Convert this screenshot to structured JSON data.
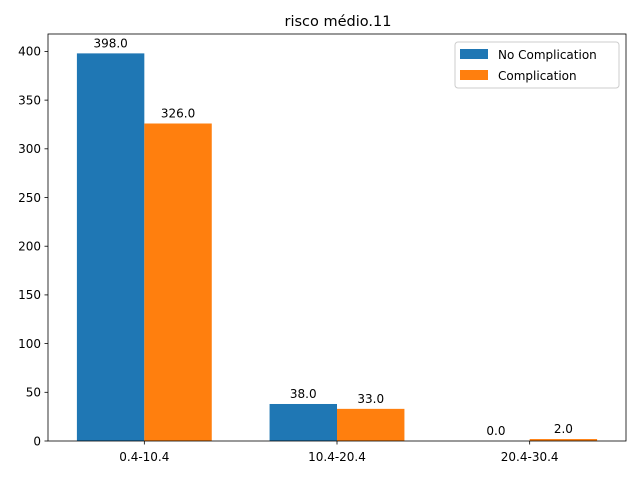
{
  "chart_data": {
    "type": "bar",
    "title": "risco médio.11",
    "xlabel": "",
    "ylabel": "",
    "categories": [
      "0.4-10.4",
      "10.4-20.4",
      "20.4-30.4"
    ],
    "series": [
      {
        "name": "No Complication",
        "values": [
          398.0,
          38.0,
          0.0
        ],
        "labels": [
          "398.0",
          "38.0",
          "0.0"
        ],
        "color": "#1f77b4"
      },
      {
        "name": "Complication",
        "values": [
          326.0,
          33.0,
          2.0
        ],
        "labels": [
          "326.0",
          "33.0",
          "2.0"
        ],
        "color": "#ff7f0e"
      }
    ],
    "ylim": [
      0,
      417.9
    ],
    "yticks": [
      0,
      50,
      100,
      150,
      200,
      250,
      300,
      350,
      400
    ],
    "grid": false,
    "legend_position": "top-right"
  }
}
